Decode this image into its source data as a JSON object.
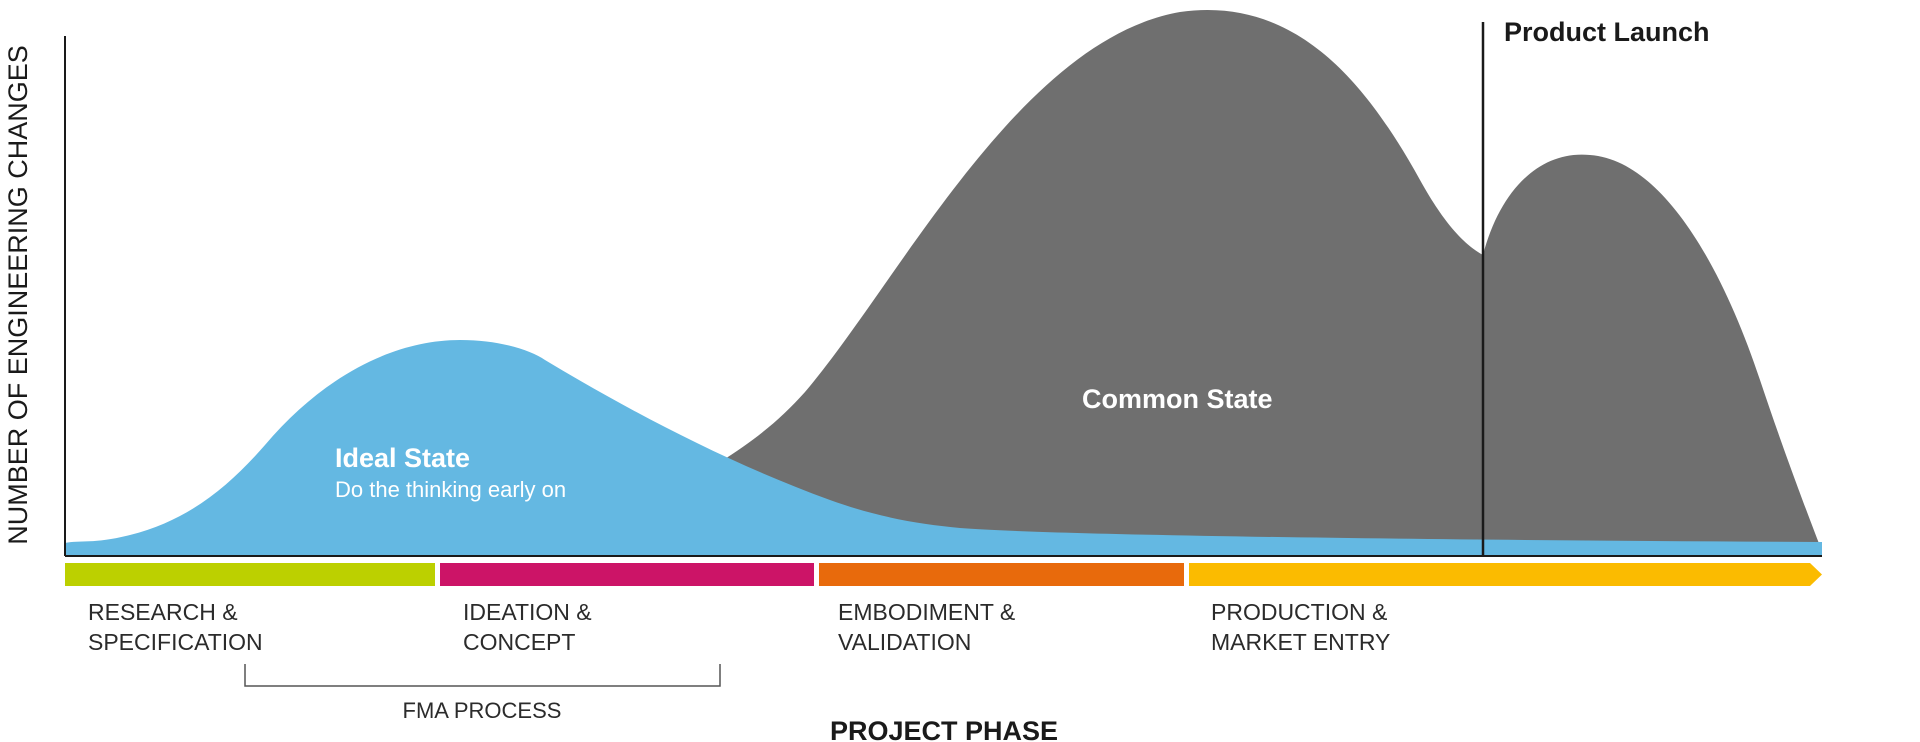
{
  "y_axis_label": "NUMBER OF ENGINEERING CHANGES",
  "x_axis_label": "PROJECT PHASE",
  "launch": {
    "label": "Product Launch"
  },
  "ideal_state": {
    "title": "Ideal State",
    "subtitle": "Do the thinking early on",
    "color": "#64b8e2"
  },
  "common_state": {
    "title": "Common State",
    "color": "#6f6f6f"
  },
  "phases": [
    {
      "line1": "RESEARCH &",
      "line2": "SPECIFICATION",
      "color": "#bcd000"
    },
    {
      "line1": "IDEATION &",
      "line2": "CONCEPT",
      "color": "#cc1467"
    },
    {
      "line1": "EMBODIMENT &",
      "line2": "VALIDATION",
      "color": "#e86a0c"
    },
    {
      "line1": "PRODUCTION &",
      "line2": "MARKET ENTRY",
      "color": "#fbbb00"
    }
  ],
  "fma": {
    "label": "FMA PROCESS"
  }
}
